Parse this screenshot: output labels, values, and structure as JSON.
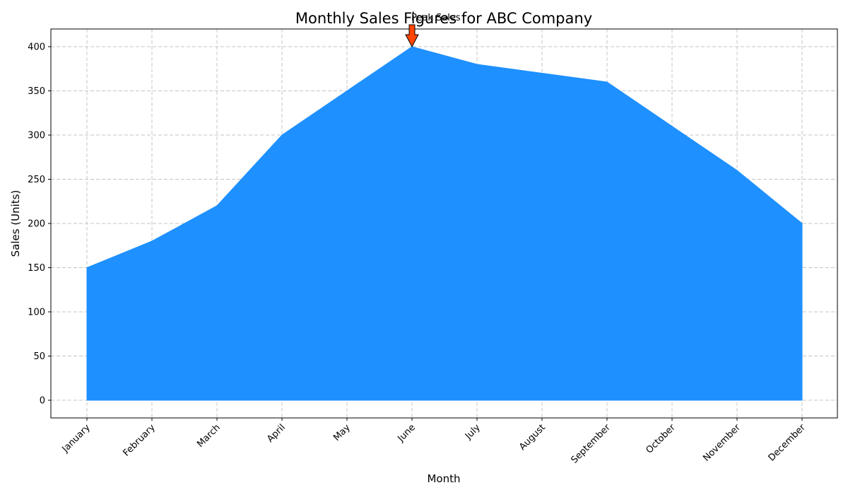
{
  "chart_data": {
    "type": "area",
    "title": "Monthly Sales Figures for ABC Company",
    "xlabel": "Month",
    "ylabel": "Sales (Units)",
    "categories": [
      "January",
      "February",
      "March",
      "April",
      "May",
      "June",
      "July",
      "August",
      "September",
      "October",
      "November",
      "December"
    ],
    "values": [
      150,
      180,
      220,
      300,
      350,
      400,
      380,
      370,
      360,
      310,
      260,
      200
    ],
    "ylim": [
      -20,
      420
    ],
    "yticks": [
      0,
      50,
      100,
      150,
      200,
      250,
      300,
      350,
      400
    ],
    "grid": true,
    "fill_color": "#1e90ff",
    "annotation": {
      "text": "Peak Sales",
      "category": "June",
      "value": 400,
      "arrow_color": "#ff4500"
    }
  }
}
